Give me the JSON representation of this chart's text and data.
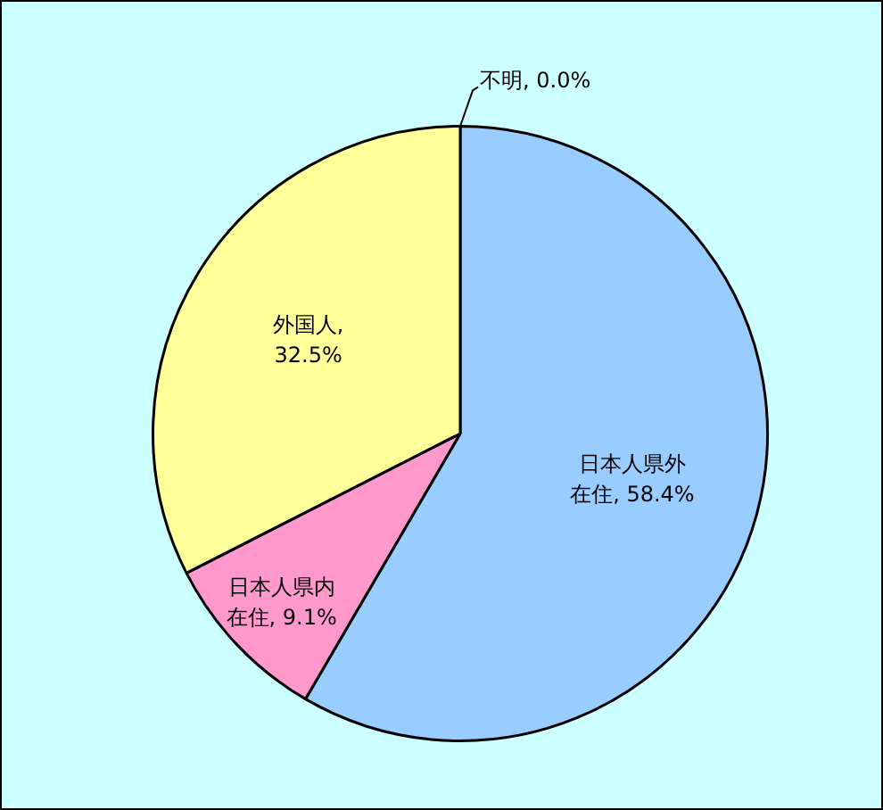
{
  "chart_data": {
    "type": "pie",
    "categories": [
      "日本人県外在住",
      "日本人県内在住",
      "外国人",
      "不明"
    ],
    "values": [
      58.4,
      9.1,
      32.5,
      0.0
    ],
    "colors": [
      "#99ccff",
      "#ff99cc",
      "#ffff99",
      "#ffffff"
    ],
    "value_labels": [
      ", 58.4%",
      ", 9.1%",
      ", 32.5%",
      ", 0.0%"
    ]
  }
}
